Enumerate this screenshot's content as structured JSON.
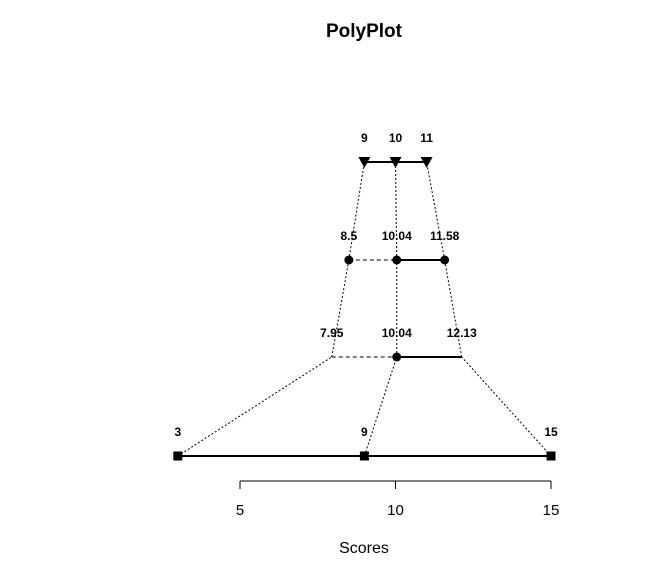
{
  "chart_data": {
    "type": "polyplot",
    "title": "PolyPlot",
    "xlabel": "Scores",
    "xlim": [
      2.5,
      15.5
    ],
    "xticks": [
      5,
      10,
      15
    ],
    "xtick_labels": [
      "5",
      "10",
      "15"
    ],
    "grid": false,
    "levels": [
      {
        "marker": "square",
        "points": [
          3,
          9,
          15
        ],
        "labels": [
          "3",
          "9",
          "15"
        ],
        "segments": [
          "solid",
          "solid"
        ]
      },
      {
        "marker": "none",
        "points": [
          7.95,
          10.04,
          12.13
        ],
        "labels": [
          "7.95",
          "10.04",
          "12.13"
        ],
        "segments": [
          "dashed",
          "solid"
        ],
        "center_marker": "circle"
      },
      {
        "marker": "circle",
        "points": [
          8.5,
          10.04,
          11.58
        ],
        "labels": [
          "8.5",
          "10.04",
          "11.58"
        ],
        "segments": [
          "dashed",
          "solid"
        ]
      },
      {
        "marker": "triangle-down",
        "points": [
          9,
          10,
          11
        ],
        "labels": [
          "9",
          "10",
          "11"
        ],
        "segments": [
          "solid",
          "solid"
        ]
      }
    ]
  }
}
